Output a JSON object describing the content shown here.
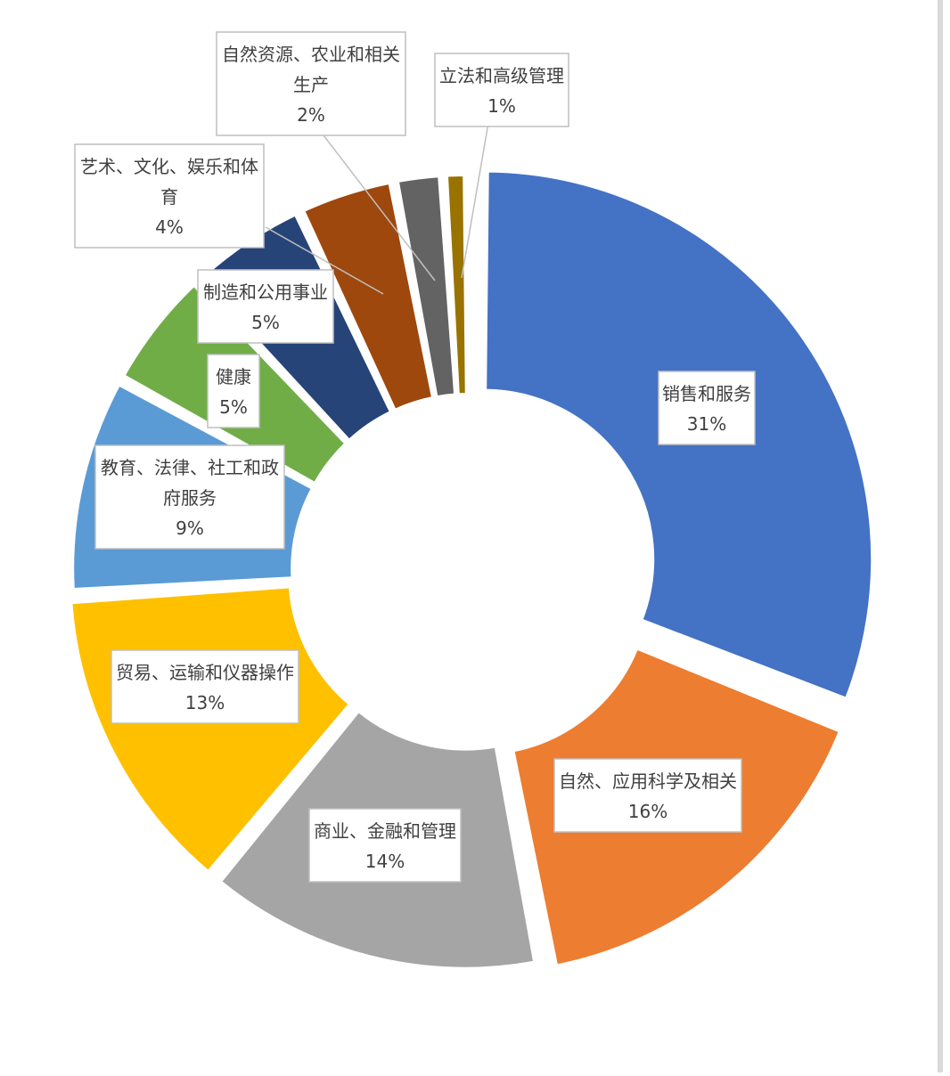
{
  "chart_data": {
    "type": "pie",
    "title": "",
    "donut": true,
    "legend": "none",
    "slices": [
      {
        "label": "销售和服务",
        "lines": [
          "销售和服务"
        ],
        "value": 31,
        "value_label": "31%",
        "color": "#4472C4"
      },
      {
        "label": "自然、应用科学及相关",
        "lines": [
          "自然、应用科学及相关"
        ],
        "value": 16,
        "value_label": "16%",
        "color": "#ED7D31"
      },
      {
        "label": "商业、金融和管理",
        "lines": [
          "商业、金融和管理"
        ],
        "value": 14,
        "value_label": "14%",
        "color": "#A5A5A5"
      },
      {
        "label": "贸易、运输和仪器操作",
        "lines": [
          "贸易、运输和仪器操作"
        ],
        "value": 13,
        "value_label": "13%",
        "color": "#FFC000"
      },
      {
        "label": "教育、法律、社工和政府服务",
        "lines": [
          "教育、法律、社工和政",
          "府服务"
        ],
        "value": 9,
        "value_label": "9%",
        "color": "#5B9BD5"
      },
      {
        "label": "健康",
        "lines": [
          "健康"
        ],
        "value": 5,
        "value_label": "5%",
        "color": "#70AD47"
      },
      {
        "label": "制造和公用事业",
        "lines": [
          "制造和公用事业"
        ],
        "value": 5,
        "value_label": "5%",
        "color": "#264478"
      },
      {
        "label": "艺术、文化、娱乐和体育",
        "lines": [
          "艺术、文化、娱乐和体",
          "育"
        ],
        "value": 4,
        "value_label": "4%",
        "color": "#9E480E"
      },
      {
        "label": "自然资源、农业和相关生产",
        "lines": [
          "自然资源、农业和相关",
          "生产"
        ],
        "value": 2,
        "value_label": "2%",
        "color": "#636363"
      },
      {
        "label": "立法和高级管理",
        "lines": [
          "立法和高级管理"
        ],
        "value": 1,
        "value_label": "1%",
        "color": "#997300"
      }
    ]
  }
}
